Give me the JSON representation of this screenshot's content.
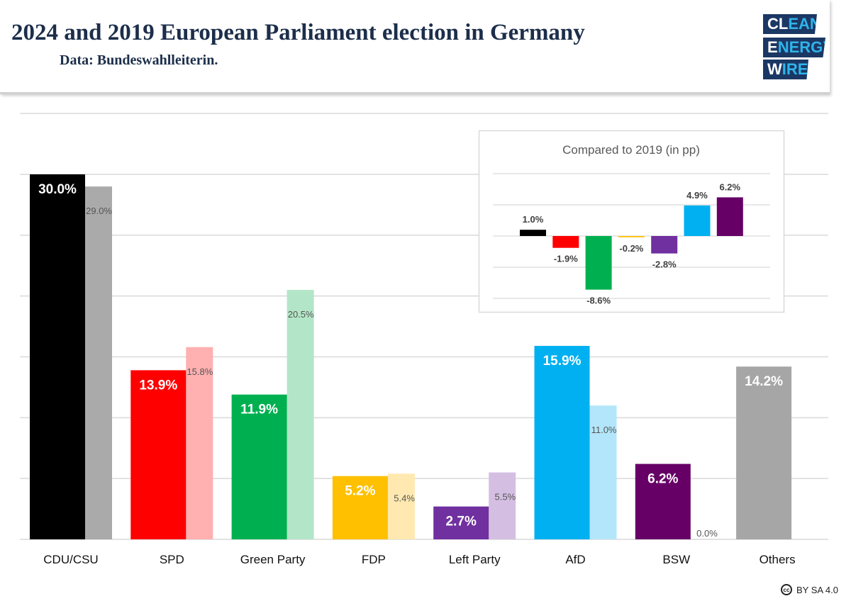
{
  "header": {
    "title": "2024 and 2019 European Parliament election in Germany",
    "subtitle": "Data: Bundeswahlleiterin."
  },
  "logo": {
    "line1": "CLEAN",
    "line2": "ENERGY",
    "line3": "WIRE"
  },
  "license": {
    "icon": "cc-icon",
    "text": "BY SA 4.0"
  },
  "chart_data": [
    {
      "type": "bar",
      "categories": [
        "CDU/CSU",
        "SPD",
        "Green Party",
        "FDP",
        "Left Party",
        "AfD",
        "BSW",
        "Others"
      ],
      "series": [
        {
          "name": "2024",
          "values": [
            30.0,
            13.9,
            11.9,
            5.2,
            2.7,
            15.9,
            6.2,
            14.2
          ],
          "labels": [
            "30.0%",
            "13.9%",
            "11.9%",
            "5.2%",
            "2.7%",
            "15.9%",
            "6.2%",
            "14.2%"
          ],
          "colors": [
            "#000000",
            "#ff0000",
            "#00b050",
            "#ffc000",
            "#7030a0",
            "#00b0f0",
            "#660066",
            "#a6a6a6"
          ]
        },
        {
          "name": "2019",
          "values": [
            29.0,
            15.8,
            20.5,
            5.4,
            5.5,
            11.0,
            0.0,
            null
          ],
          "labels": [
            "29.0%",
            "15.8%",
            "20.5%",
            "5.4%",
            "5.5%",
            "11.0%",
            "0.0%",
            ""
          ],
          "colors": [
            "#aaaaaa",
            "#ffb0b0",
            "#b3e6c8",
            "#ffe9b0",
            "#d4bfe3",
            "#b3e6fa",
            "#e8d0e8",
            "#dddddd"
          ]
        }
      ],
      "ylim": [
        0,
        35
      ],
      "grid": true
    },
    {
      "type": "bar",
      "title": "Compared to 2019 (in pp)",
      "values": [
        1.0,
        -1.9,
        -8.6,
        -0.2,
        -2.8,
        4.9,
        6.2
      ],
      "labels": [
        "1.0%",
        "-1.9%",
        "-8.6%",
        "-0.2%",
        "-2.8%",
        "4.9%",
        "6.2%"
      ],
      "colors": [
        "#000000",
        "#ff0000",
        "#00b050",
        "#ffc000",
        "#7030a0",
        "#00b0f0",
        "#660066"
      ],
      "ylim": [
        -10,
        10
      ],
      "grid": true
    }
  ]
}
